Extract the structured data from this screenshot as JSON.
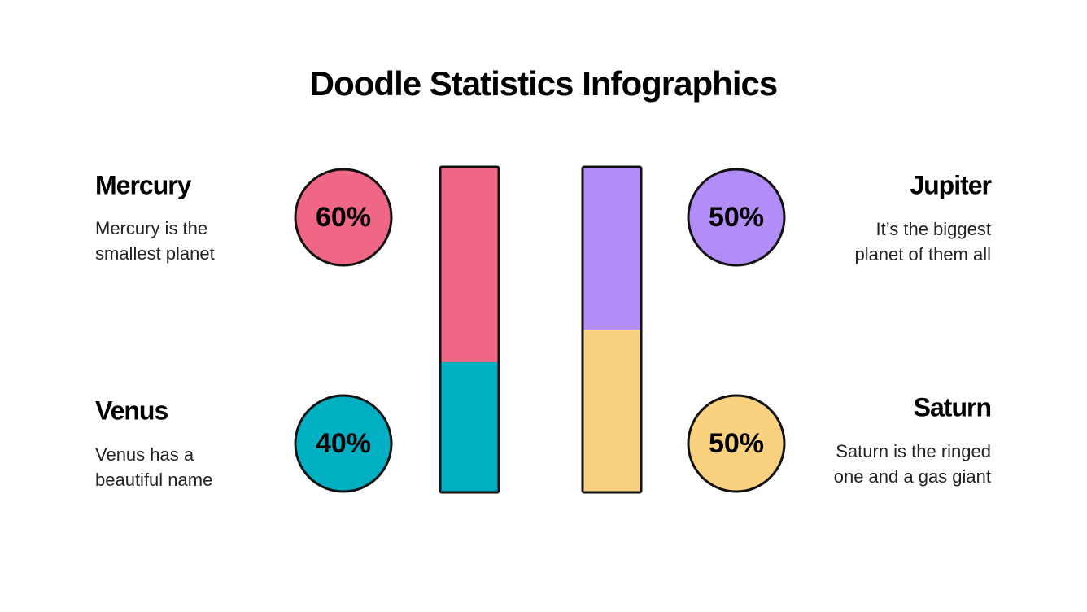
{
  "chart_data": {
    "type": "stacked-bar",
    "title": "Doodle Statistics Infographics",
    "bars": [
      {
        "segments": [
          {
            "name": "Mercury",
            "description": [
              "Mercury is the",
              "smallest planet"
            ],
            "value": 60,
            "value_label": "60%",
            "color": "#f06685"
          },
          {
            "name": "Venus",
            "description": [
              "Venus has a",
              "beautiful name"
            ],
            "value": 40,
            "value_label": "40%",
            "color": "#00b0c2"
          }
        ]
      },
      {
        "segments": [
          {
            "name": "Jupiter",
            "description": [
              "It’s the biggest",
              "planet of them all"
            ],
            "value": 50,
            "value_label": "50%",
            "color": "#b28cf7"
          },
          {
            "name": "Saturn",
            "description": [
              "Saturn is the ringed",
              "one and a gas giant"
            ],
            "value": 50,
            "value_label": "50%",
            "color": "#fad27f"
          }
        ]
      }
    ]
  }
}
